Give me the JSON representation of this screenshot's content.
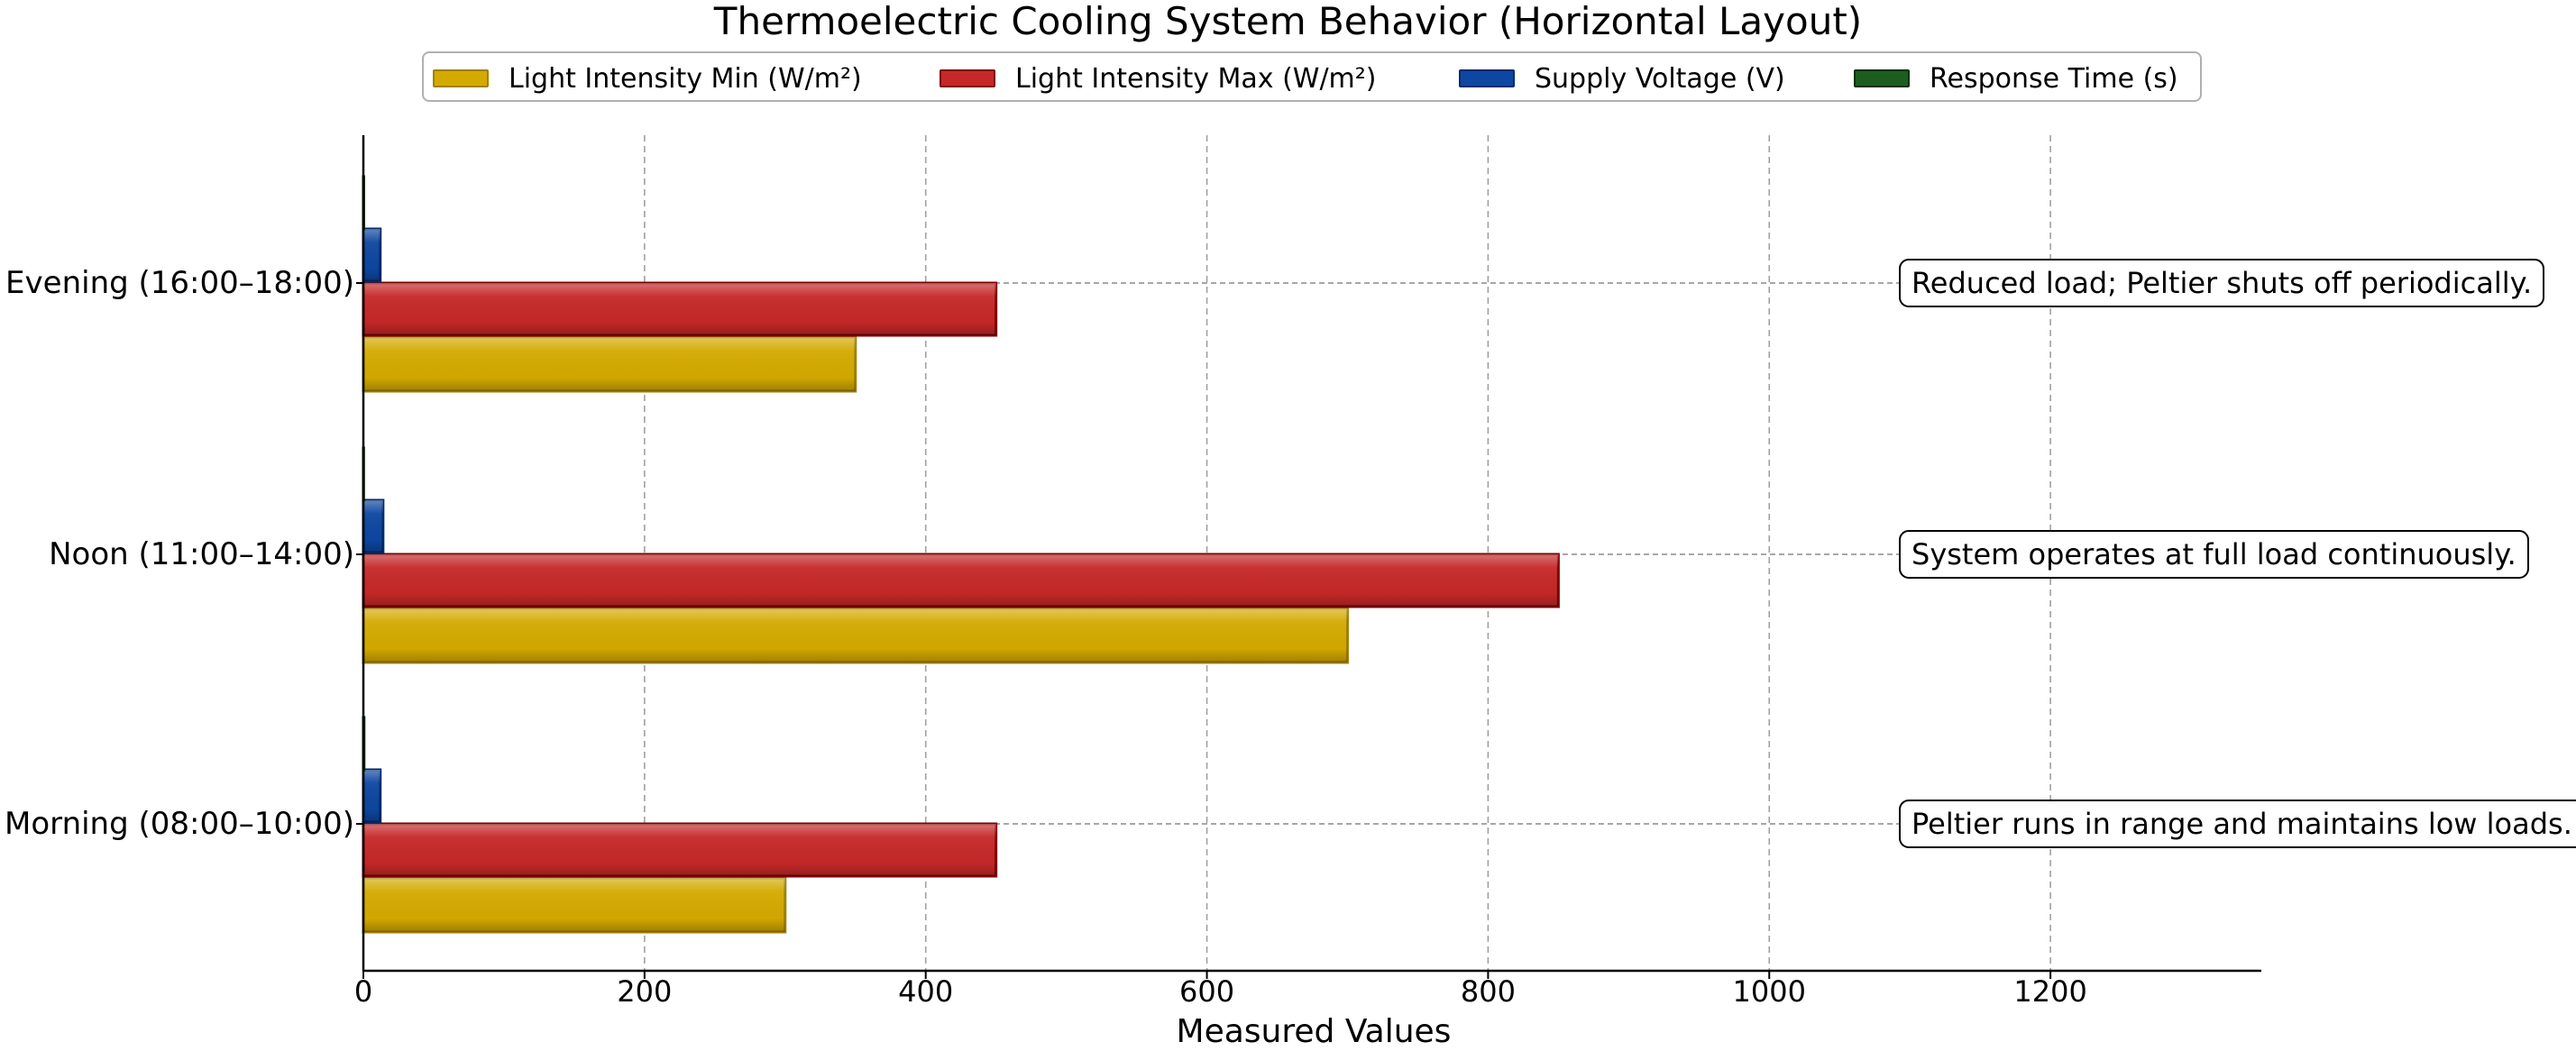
{
  "chart_data": {
    "type": "bar",
    "orientation": "horizontal",
    "title": "Thermoelectric Cooling System Behavior (Horizontal Layout)",
    "xlabel": "Measured Values",
    "ylabel": "",
    "xlim": [
      0,
      1350
    ],
    "x_ticks": [
      0,
      200,
      400,
      600,
      800,
      1000,
      1200
    ],
    "grid": "vertical dashed",
    "legend_placement": "top-center",
    "categories": [
      "Morning (08:00–10:00)",
      "Noon (11:00–14:00)",
      "Evening (16:00–18:00)"
    ],
    "series": [
      {
        "name": "Light Intensity Min (W/m²)",
        "color": "#d4aa00",
        "edge": "#a07f00",
        "values": [
          300,
          700,
          350
        ]
      },
      {
        "name": "Light Intensity Max (W/m²)",
        "color": "#c62828",
        "edge": "#7f0000",
        "values": [
          450,
          850,
          450
        ]
      },
      {
        "name": "Supply Voltage (V)",
        "color": "#0d47a1",
        "edge": "#002a6e",
        "values": [
          12,
          14,
          12
        ]
      },
      {
        "name": "Response Time (s)",
        "color": "#1b5e20",
        "edge": "#003300",
        "values": [
          0.5,
          0.2,
          0.3
        ]
      }
    ],
    "annotations": [
      {
        "category": "Morning (08:00–10:00)",
        "text": "Peltier runs in range and maintains low loads."
      },
      {
        "category": "Noon (11:00–14:00)",
        "text": "System operates at full load continuously."
      },
      {
        "category": "Evening (16:00–18:00)",
        "text": "Reduced load; Peltier shuts off periodically."
      }
    ]
  }
}
